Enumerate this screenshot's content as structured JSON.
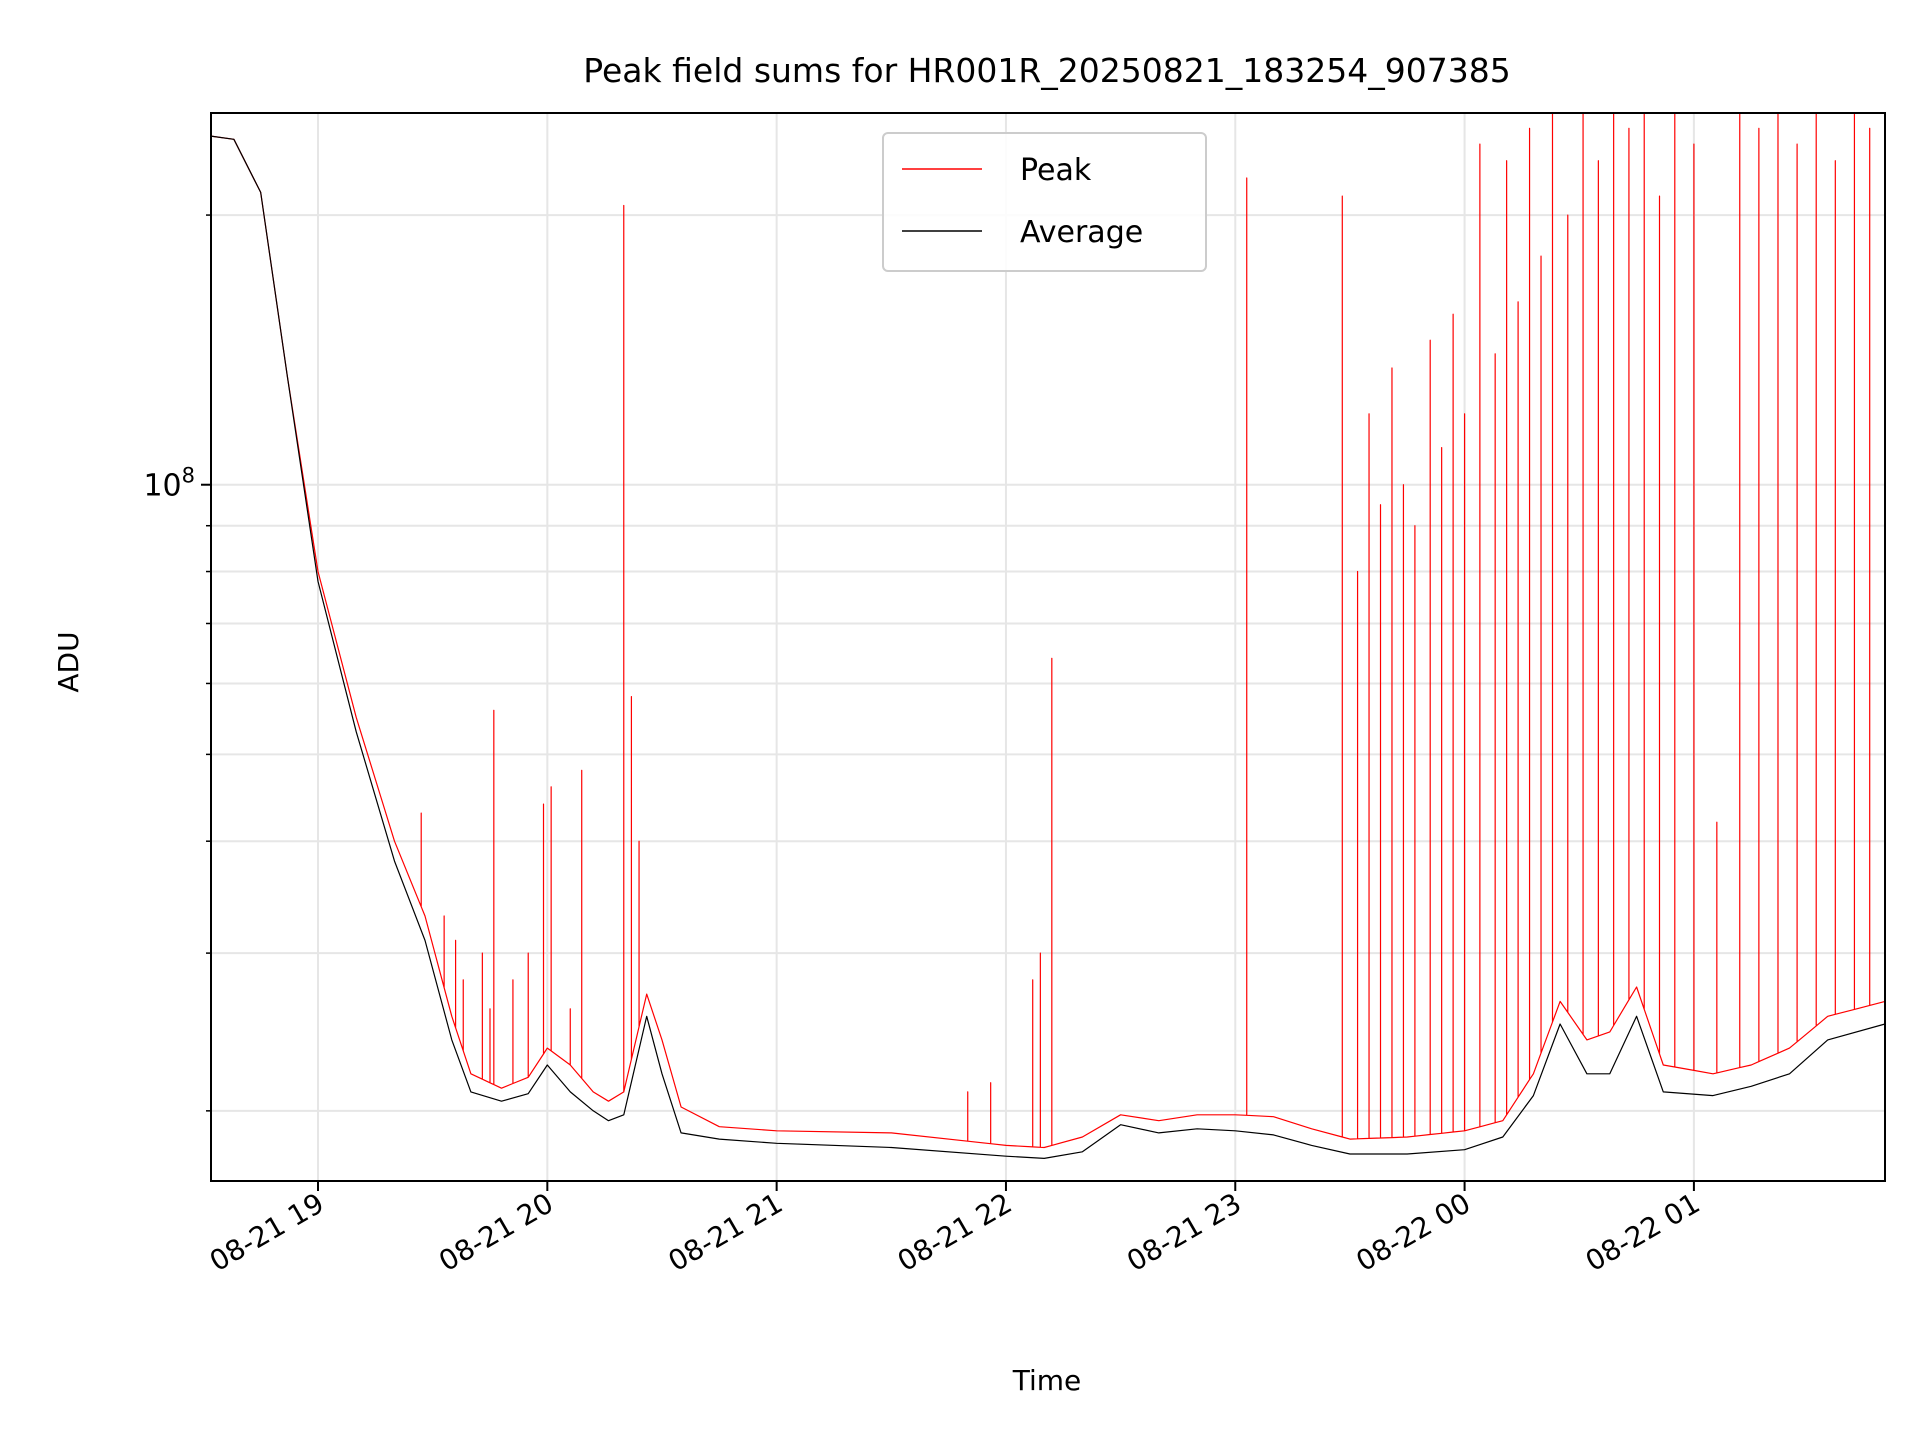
{
  "chart_data": {
    "type": "line",
    "title": "Peak field sums for HR001R_20250821_183254_907385",
    "xlabel": "Time",
    "ylabel": "ADU",
    "x_tick_labels": [
      "08-21 19",
      "08-21 20",
      "08-21 21",
      "08-21 22",
      "08-21 23",
      "08-22 00",
      "08-22 01"
    ],
    "x_ticks": [
      "2025-08-21 19:00",
      "2025-08-21 20:00",
      "2025-08-21 21:00",
      "2025-08-21 22:00",
      "2025-08-21 23:00",
      "2025-08-22 00:00",
      "2025-08-22 01:00"
    ],
    "y_major_tick_labels": [
      {
        "base": "10",
        "exp": "8"
      }
    ],
    "y_major_ticks": [
      100000000
    ],
    "y_minor_ticks": [
      20000000,
      30000000,
      40000000,
      50000000,
      60000000,
      70000000,
      80000000,
      90000000,
      200000000
    ],
    "xlim": [
      "2025-08-21 18:32",
      "2025-08-22 01:50"
    ],
    "ylim": [
      16700000,
      260000000
    ],
    "y_scale": "log",
    "grid": true,
    "legend_position": "upper center",
    "series": [
      {
        "name": "Peak",
        "color": "#ff0000",
        "baseline": [
          [
            "2025-08-21 18:32",
            245000000
          ],
          [
            "2025-08-21 18:38",
            243000000
          ],
          [
            "2025-08-21 18:45",
            212000000
          ],
          [
            "2025-08-21 18:52",
            132000000
          ],
          [
            "2025-08-21 19:00",
            80000000
          ],
          [
            "2025-08-21 19:10",
            55000000
          ],
          [
            "2025-08-21 19:20",
            40000000
          ],
          [
            "2025-08-21 19:28",
            33000000
          ],
          [
            "2025-08-21 19:35",
            25500000
          ],
          [
            "2025-08-21 19:40",
            22000000
          ],
          [
            "2025-08-21 19:48",
            21200000
          ],
          [
            "2025-08-21 19:55",
            21800000
          ],
          [
            "2025-08-21 20:00",
            23500000
          ],
          [
            "2025-08-21 20:06",
            22500000
          ],
          [
            "2025-08-21 20:12",
            21000000
          ],
          [
            "2025-08-21 20:16",
            20500000
          ],
          [
            "2025-08-21 20:20",
            21000000
          ],
          [
            "2025-08-21 20:26",
            27000000
          ],
          [
            "2025-08-21 20:30",
            24000000
          ],
          [
            "2025-08-21 20:35",
            20200000
          ],
          [
            "2025-08-21 20:45",
            19200000
          ],
          [
            "2025-08-21 21:00",
            19000000
          ],
          [
            "2025-08-21 21:30",
            18900000
          ],
          [
            "2025-08-21 22:00",
            18300000
          ],
          [
            "2025-08-21 22:10",
            18200000
          ],
          [
            "2025-08-21 22:20",
            18700000
          ],
          [
            "2025-08-21 22:30",
            19800000
          ],
          [
            "2025-08-21 22:40",
            19500000
          ],
          [
            "2025-08-21 22:50",
            19800000
          ],
          [
            "2025-08-21 23:00",
            19800000
          ],
          [
            "2025-08-21 23:10",
            19700000
          ],
          [
            "2025-08-21 23:20",
            19100000
          ],
          [
            "2025-08-21 23:30",
            18600000
          ],
          [
            "2025-08-21 23:45",
            18700000
          ],
          [
            "2025-08-22 00:00",
            19000000
          ],
          [
            "2025-08-22 00:10",
            19500000
          ],
          [
            "2025-08-22 00:18",
            22000000
          ],
          [
            "2025-08-22 00:25",
            26500000
          ],
          [
            "2025-08-22 00:32",
            24000000
          ],
          [
            "2025-08-22 00:38",
            24500000
          ],
          [
            "2025-08-22 00:45",
            27500000
          ],
          [
            "2025-08-22 00:52",
            22500000
          ],
          [
            "2025-08-22 01:05",
            22000000
          ],
          [
            "2025-08-22 01:15",
            22500000
          ],
          [
            "2025-08-22 01:25",
            23500000
          ],
          [
            "2025-08-22 01:35",
            25500000
          ],
          [
            "2025-08-22 01:50",
            26500000
          ]
        ],
        "spikes": [
          [
            "2025-08-21 19:27",
            43000000
          ],
          [
            "2025-08-21 19:33",
            33000000
          ],
          [
            "2025-08-21 19:36",
            31000000
          ],
          [
            "2025-08-21 19:38",
            28000000
          ],
          [
            "2025-08-21 19:43",
            30000000
          ],
          [
            "2025-08-21 19:45",
            26000000
          ],
          [
            "2025-08-21 19:46",
            56000000
          ],
          [
            "2025-08-21 19:51",
            28000000
          ],
          [
            "2025-08-21 19:55",
            30000000
          ],
          [
            "2025-08-21 19:59",
            44000000
          ],
          [
            "2025-08-21 20:01",
            46000000
          ],
          [
            "2025-08-21 20:06",
            26000000
          ],
          [
            "2025-08-21 20:09",
            48000000
          ],
          [
            "2025-08-21 20:20",
            205000000
          ],
          [
            "2025-08-21 20:22",
            58000000
          ],
          [
            "2025-08-21 20:24",
            40000000
          ],
          [
            "2025-08-21 21:50",
            21000000
          ],
          [
            "2025-08-21 21:56",
            21500000
          ],
          [
            "2025-08-21 22:07",
            28000000
          ],
          [
            "2025-08-21 22:09",
            30000000
          ],
          [
            "2025-08-21 22:12",
            64000000
          ],
          [
            "2025-08-21 23:03",
            220000000
          ],
          [
            "2025-08-21 23:28",
            210000000
          ],
          [
            "2025-08-21 23:32",
            80000000
          ],
          [
            "2025-08-21 23:35",
            120000000
          ],
          [
            "2025-08-21 23:38",
            95000000
          ],
          [
            "2025-08-21 23:41",
            135000000
          ],
          [
            "2025-08-21 23:44",
            100000000
          ],
          [
            "2025-08-21 23:47",
            90000000
          ],
          [
            "2025-08-21 23:51",
            145000000
          ],
          [
            "2025-08-21 23:54",
            110000000
          ],
          [
            "2025-08-21 23:57",
            155000000
          ],
          [
            "2025-08-22 00:00",
            120000000
          ],
          [
            "2025-08-22 00:04",
            240000000
          ],
          [
            "2025-08-22 00:08",
            140000000
          ],
          [
            "2025-08-22 00:11",
            230000000
          ],
          [
            "2025-08-22 00:14",
            160000000
          ],
          [
            "2025-08-22 00:17",
            250000000
          ],
          [
            "2025-08-22 00:20",
            180000000
          ],
          [
            "2025-08-22 00:23",
            260000000
          ],
          [
            "2025-08-22 00:27",
            200000000
          ],
          [
            "2025-08-22 00:31",
            260000000
          ],
          [
            "2025-08-22 00:35",
            230000000
          ],
          [
            "2025-08-22 00:39",
            260000000
          ],
          [
            "2025-08-22 00:43",
            250000000
          ],
          [
            "2025-08-22 00:47",
            260000000
          ],
          [
            "2025-08-22 00:51",
            210000000
          ],
          [
            "2025-08-22 00:55",
            260000000
          ],
          [
            "2025-08-22 01:00",
            240000000
          ],
          [
            "2025-08-22 01:06",
            42000000
          ],
          [
            "2025-08-22 01:12",
            260000000
          ],
          [
            "2025-08-22 01:17",
            250000000
          ],
          [
            "2025-08-22 01:22",
            260000000
          ],
          [
            "2025-08-22 01:27",
            240000000
          ],
          [
            "2025-08-22 01:32",
            260000000
          ],
          [
            "2025-08-22 01:37",
            230000000
          ],
          [
            "2025-08-22 01:42",
            260000000
          ],
          [
            "2025-08-22 01:46",
            250000000
          ],
          [
            "2025-08-22 01:50",
            260000000
          ]
        ]
      },
      {
        "name": "Average",
        "color": "#000000",
        "baseline": [
          [
            "2025-08-21 18:32",
            245000000
          ],
          [
            "2025-08-21 18:38",
            243000000
          ],
          [
            "2025-08-21 18:45",
            212000000
          ],
          [
            "2025-08-21 18:52",
            132000000
          ],
          [
            "2025-08-21 19:00",
            78000000
          ],
          [
            "2025-08-21 19:10",
            53000000
          ],
          [
            "2025-08-21 19:20",
            38000000
          ],
          [
            "2025-08-21 19:28",
            31000000
          ],
          [
            "2025-08-21 19:35",
            24000000
          ],
          [
            "2025-08-21 19:40",
            21000000
          ],
          [
            "2025-08-21 19:48",
            20500000
          ],
          [
            "2025-08-21 19:55",
            20900000
          ],
          [
            "2025-08-21 20:00",
            22500000
          ],
          [
            "2025-08-21 20:06",
            21000000
          ],
          [
            "2025-08-21 20:12",
            20000000
          ],
          [
            "2025-08-21 20:16",
            19500000
          ],
          [
            "2025-08-21 20:20",
            19800000
          ],
          [
            "2025-08-21 20:26",
            25500000
          ],
          [
            "2025-08-21 20:30",
            22000000
          ],
          [
            "2025-08-21 20:35",
            18900000
          ],
          [
            "2025-08-21 20:45",
            18600000
          ],
          [
            "2025-08-21 21:00",
            18400000
          ],
          [
            "2025-08-21 21:30",
            18200000
          ],
          [
            "2025-08-21 22:00",
            17800000
          ],
          [
            "2025-08-21 22:10",
            17700000
          ],
          [
            "2025-08-21 22:20",
            18000000
          ],
          [
            "2025-08-21 22:30",
            19300000
          ],
          [
            "2025-08-21 22:40",
            18900000
          ],
          [
            "2025-08-21 22:50",
            19100000
          ],
          [
            "2025-08-21 23:00",
            19000000
          ],
          [
            "2025-08-21 23:10",
            18800000
          ],
          [
            "2025-08-21 23:20",
            18300000
          ],
          [
            "2025-08-21 23:30",
            17900000
          ],
          [
            "2025-08-21 23:45",
            17900000
          ],
          [
            "2025-08-22 00:00",
            18100000
          ],
          [
            "2025-08-22 00:10",
            18700000
          ],
          [
            "2025-08-22 00:18",
            20800000
          ],
          [
            "2025-08-22 00:25",
            25000000
          ],
          [
            "2025-08-22 00:32",
            22000000
          ],
          [
            "2025-08-22 00:38",
            22000000
          ],
          [
            "2025-08-22 00:45",
            25500000
          ],
          [
            "2025-08-22 00:52",
            21000000
          ],
          [
            "2025-08-22 01:05",
            20800000
          ],
          [
            "2025-08-22 01:15",
            21300000
          ],
          [
            "2025-08-22 01:25",
            22000000
          ],
          [
            "2025-08-22 01:35",
            24000000
          ],
          [
            "2025-08-22 01:50",
            25000000
          ]
        ]
      }
    ]
  }
}
